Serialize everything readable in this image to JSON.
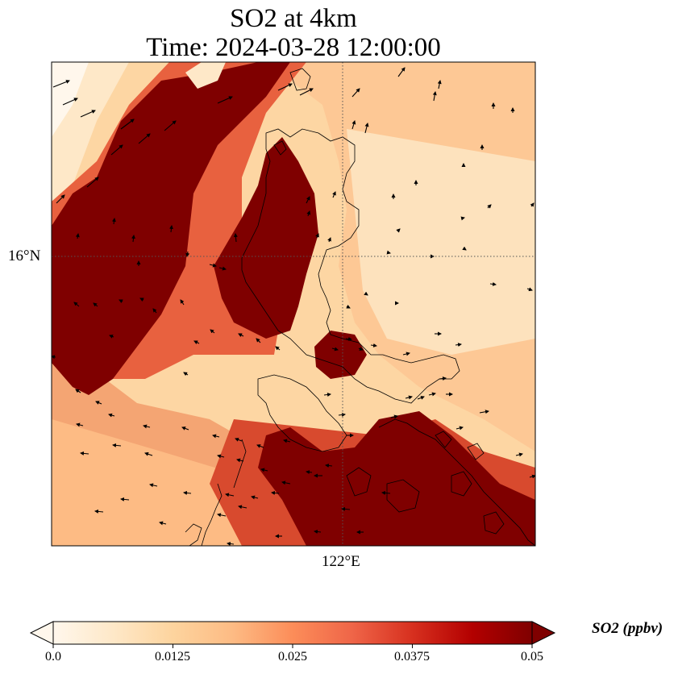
{
  "title": {
    "line1": "SO2 at 4km",
    "line2": "Time: 2024-03-28 12:00:00"
  },
  "axes": {
    "lat_tick": "16°N",
    "lon_tick": "122°E"
  },
  "colorbar": {
    "label": "SO2 (ppbv)",
    "ticks": [
      "0.0",
      "0.0125",
      "0.025",
      "0.0375",
      "0.05"
    ],
    "vmin": 0.0,
    "vmax": 0.05,
    "extend": "both",
    "colormap": "OrRd",
    "colors": [
      "#fff7ec",
      "#fee8c8",
      "#fdd49e",
      "#fdbb84",
      "#fc8d59",
      "#ef6548",
      "#d7301f",
      "#b30000",
      "#7f0000"
    ]
  },
  "style": {
    "coastline_color": "#000000",
    "gridline_color": "#555555",
    "arrow_color": "#000000"
  }
}
